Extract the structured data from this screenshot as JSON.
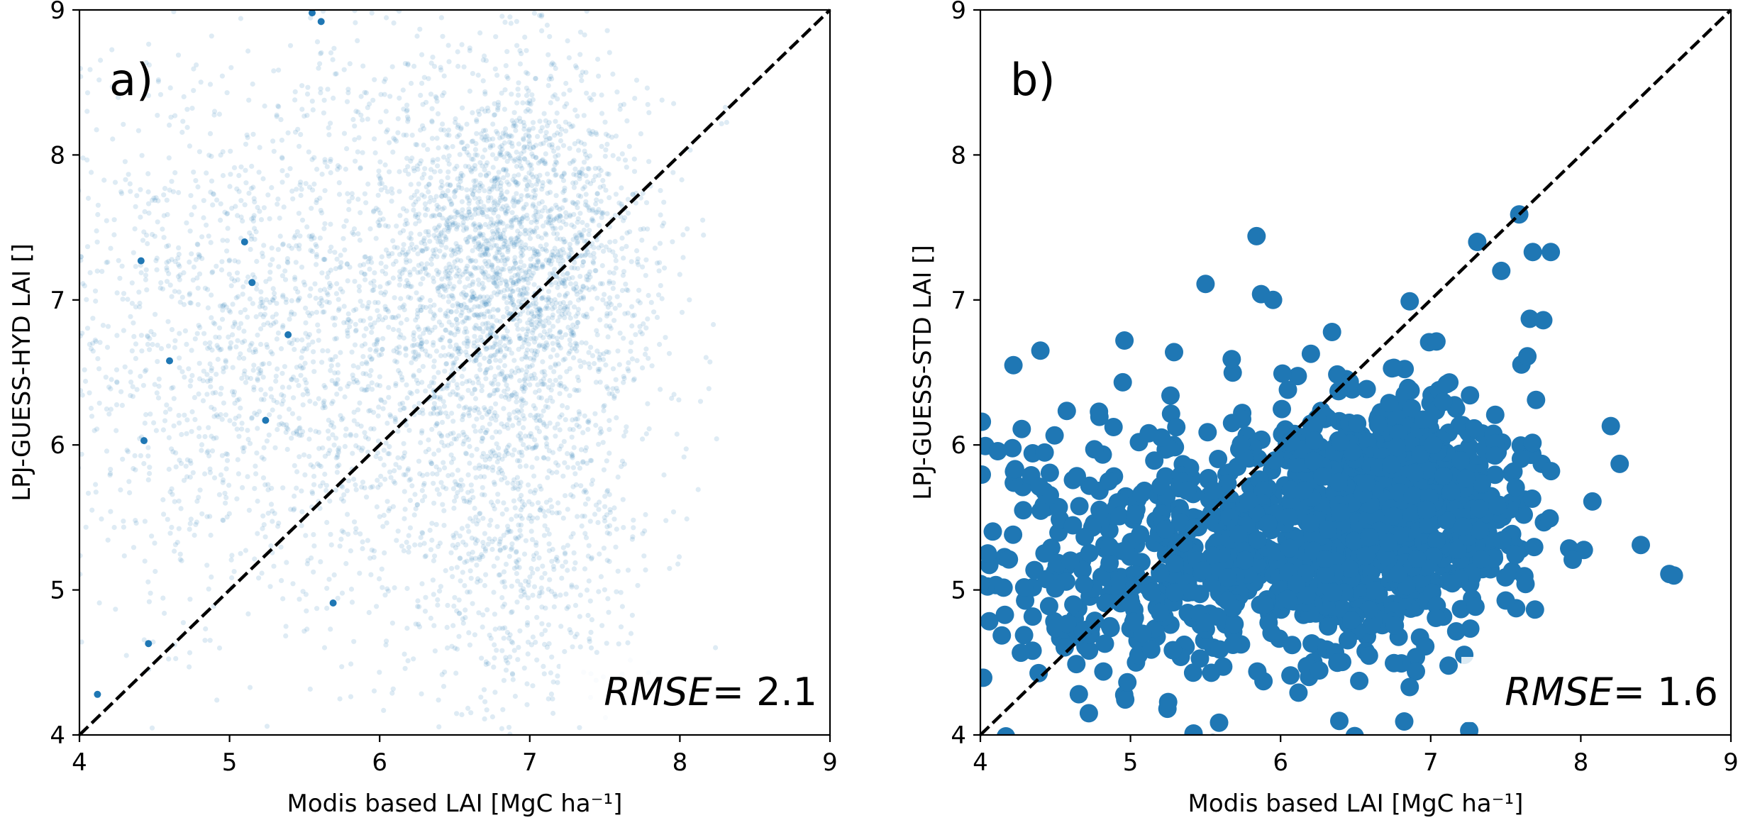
{
  "chart_data": [
    {
      "type": "scatter",
      "panel_label": "a)",
      "xlabel": "Modis based LAI [MgC ha⁻¹]",
      "ylabel": "LPJ-GUESS-HYD LAI []",
      "xlim": [
        4,
        9
      ],
      "ylim": [
        4,
        9
      ],
      "xticks": [
        "4",
        "5",
        "6",
        "7",
        "8",
        "9"
      ],
      "yticks": [
        "4",
        "5",
        "6",
        "7",
        "8",
        "9"
      ],
      "grid": false,
      "reference_line": "1:1 dashed",
      "annotation": {
        "label": "RMSE",
        "value": "=  2.1"
      },
      "point_color": "#1f77b4",
      "point_alpha": 0.15,
      "point_style": "small translucent, dense",
      "clusters": [
        {
          "x_center": 6.9,
          "y_center": 7.3,
          "x_spread": 0.45,
          "y_spread": 0.65,
          "share": 0.42
        },
        {
          "x_center": 5.4,
          "y_center": 6.8,
          "x_spread": 0.95,
          "y_spread": 1.05,
          "share": 0.38
        },
        {
          "x_center": 6.9,
          "y_center": 5.4,
          "x_spread": 0.45,
          "y_spread": 0.7,
          "share": 0.2
        }
      ],
      "highlighted_points": [
        {
          "x": 4.12,
          "y": 4.28
        },
        {
          "x": 4.43,
          "y": 6.03
        },
        {
          "x": 4.46,
          "y": 4.63
        },
        {
          "x": 4.41,
          "y": 7.27
        },
        {
          "x": 4.6,
          "y": 6.58
        },
        {
          "x": 5.1,
          "y": 7.4
        },
        {
          "x": 5.15,
          "y": 7.12
        },
        {
          "x": 5.24,
          "y": 6.17
        },
        {
          "x": 5.39,
          "y": 6.76
        },
        {
          "x": 5.55,
          "y": 8.98
        },
        {
          "x": 5.61,
          "y": 8.92
        },
        {
          "x": 5.69,
          "y": 4.91
        }
      ]
    },
    {
      "type": "scatter",
      "panel_label": "b)",
      "xlabel": "Modis based LAI [MgC ha⁻¹]",
      "ylabel": "LPJ-GUESS-STD LAI []",
      "xlim": [
        4,
        9
      ],
      "ylim": [
        4,
        9
      ],
      "xticks": [
        "4",
        "5",
        "6",
        "7",
        "8",
        "9"
      ],
      "yticks": [
        "4",
        "5",
        "6",
        "7",
        "8",
        "9"
      ],
      "grid": false,
      "reference_line": "1:1 dashed",
      "annotation": {
        "label": "RMSE",
        "value": "=  1.6"
      },
      "point_color": "#1f77b4",
      "point_alpha": 1.0,
      "point_style": "large opaque markers",
      "clusters": [
        {
          "x_center": 6.75,
          "y_center": 5.6,
          "x_spread": 0.42,
          "y_spread": 0.38,
          "share": 0.65
        },
        {
          "x_center": 5.4,
          "y_center": 5.2,
          "x_spread": 0.8,
          "y_spread": 0.5,
          "share": 0.35
        }
      ],
      "highlighted_points": [
        {
          "x": 7.59,
          "y": 7.59
        },
        {
          "x": 5.84,
          "y": 7.44
        },
        {
          "x": 5.5,
          "y": 7.11
        },
        {
          "x": 7.31,
          "y": 7.4
        },
        {
          "x": 7.68,
          "y": 7.33
        },
        {
          "x": 7.8,
          "y": 7.33
        },
        {
          "x": 7.47,
          "y": 7.2
        },
        {
          "x": 6.86,
          "y": 6.99
        },
        {
          "x": 5.87,
          "y": 7.04
        },
        {
          "x": 5.95,
          "y": 7.0
        },
        {
          "x": 7.66,
          "y": 6.87
        },
        {
          "x": 7.75,
          "y": 6.86
        },
        {
          "x": 4.22,
          "y": 6.55
        },
        {
          "x": 4.4,
          "y": 6.65
        },
        {
          "x": 4.01,
          "y": 6.16
        },
        {
          "x": 4.96,
          "y": 6.72
        },
        {
          "x": 5.29,
          "y": 6.64
        },
        {
          "x": 8.2,
          "y": 6.13
        },
        {
          "x": 8.4,
          "y": 5.31
        },
        {
          "x": 8.59,
          "y": 5.11
        },
        {
          "x": 8.62,
          "y": 5.1
        },
        {
          "x": 6.86,
          "y": 4.33
        },
        {
          "x": 5.42,
          "y": 4.01
        },
        {
          "x": 4.17,
          "y": 3.99
        }
      ]
    }
  ]
}
